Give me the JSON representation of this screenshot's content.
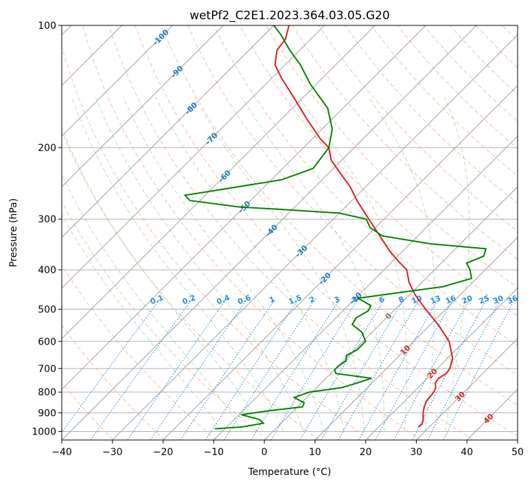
{
  "chart_data": {
    "type": "line",
    "title": "wetPf2_C2E1.2023.364.03.05.G20",
    "xlabel": "Temperature (°C)",
    "ylabel": "Pressure (hPa)",
    "xlim": [
      -40,
      50
    ],
    "ylim": [
      1050,
      100
    ],
    "y_scale": "log",
    "skew": "skew-T log-p, isotherms slant 45 deg",
    "grid": true,
    "x_ticks": [
      -40,
      -30,
      -20,
      -10,
      0,
      10,
      20,
      30,
      40,
      50
    ],
    "x_tick_labels": [
      "−40",
      "−30",
      "−20",
      "−10",
      "0",
      "10",
      "20",
      "30",
      "40",
      "50"
    ],
    "y_ticks": [
      100,
      200,
      300,
      400,
      500,
      600,
      700,
      800,
      900,
      1000
    ],
    "y_tick_labels": [
      "100",
      "200",
      "300",
      "400",
      "500",
      "600",
      "700",
      "800",
      "900",
      "1000"
    ],
    "isotherm_labels": {
      "temps": [
        -100,
        -90,
        -80,
        -70,
        -60,
        -50,
        -40,
        -30,
        -20,
        -10,
        0,
        10,
        20,
        30,
        40
      ],
      "pressures": [
        107,
        130,
        160,
        190,
        235,
        280,
        320,
        360,
        420,
        470,
        520,
        630,
        720,
        820,
        930
      ],
      "labels": [
        "-100",
        "-90",
        "-80",
        "-70",
        "-60",
        "-50",
        "-40",
        "-30",
        "-20",
        "-10",
        "0",
        "10",
        "20",
        "30",
        "40"
      ]
    },
    "mixing_ratio": {
      "values": [
        0.1,
        0.2,
        0.4,
        0.6,
        1,
        1.5,
        2,
        3,
        4,
        6,
        8,
        10,
        13,
        16,
        20,
        25,
        30,
        36
      ],
      "labels": [
        "0.1",
        "0.2",
        "0.4",
        "0.6",
        "1",
        "1.5",
        "2",
        "3",
        "4",
        "6",
        "8",
        "10",
        "13",
        "16",
        "20",
        "25",
        "30",
        "36"
      ],
      "label_pressure": 480
    },
    "series": [
      {
        "name": "Temperature",
        "color": "#e41a1c",
        "p": [
          975,
          960,
          940,
          900,
          870,
          840,
          800,
          780,
          760,
          740,
          720,
          700,
          660,
          600,
          550,
          500,
          460,
          430,
          400,
          380,
          360,
          330,
          300,
          270,
          250,
          230,
          215,
          200,
          190,
          170,
          150,
          135,
          125,
          115,
          108,
          100
        ],
        "t": [
          27.8,
          28.0,
          27.5,
          26.0,
          25.0,
          24.3,
          24.0,
          23.5,
          22.5,
          22.2,
          22.8,
          22.5,
          21.0,
          17.0,
          12.0,
          6.0,
          1.0,
          -2.5,
          -5.5,
          -9.0,
          -12.5,
          -17.5,
          -23.0,
          -29.0,
          -33.0,
          -38.0,
          -42.0,
          -45.0,
          -48.5,
          -55.0,
          -62.0,
          -68.0,
          -72.0,
          -74.5,
          -75.0,
          -77.0
        ]
      },
      {
        "name": "Dewpoint",
        "color": "#008000",
        "p": [
          985,
          975,
          955,
          935,
          910,
          890,
          870,
          850,
          825,
          800,
          780,
          760,
          740,
          720,
          705,
          690,
          670,
          650,
          630,
          600,
          570,
          545,
          525,
          505,
          490,
          470,
          455,
          440,
          420,
          400,
          385,
          370,
          355,
          345,
          330,
          315,
          300,
          290,
          285,
          280,
          270,
          262,
          255,
          240,
          225,
          200,
          180,
          160,
          140,
          125,
          115,
          105,
          100
        ],
        "t": [
          -12.0,
          -7.0,
          -3.5,
          -5.0,
          -9.5,
          -5.0,
          1.0,
          0.5,
          -2.5,
          -0.5,
          5.0,
          7.0,
          9.0,
          1.0,
          0.0,
          0.0,
          0.5,
          -0.5,
          0.5,
          0.5,
          -2.0,
          -5.5,
          -6.0,
          -5.0,
          -5.5,
          -9.5,
          -2.5,
          5.0,
          9.0,
          7.0,
          5.0,
          7.0,
          6.0,
          -6.0,
          -17.0,
          -21.0,
          -23.5,
          -30.0,
          -40.0,
          -51.0,
          -62.0,
          -64.0,
          -59.0,
          -48.0,
          -44.0,
          -45.0,
          -48.0,
          -53.0,
          -61.0,
          -67.0,
          -72.0,
          -77.0,
          -80.0
        ]
      }
    ]
  }
}
